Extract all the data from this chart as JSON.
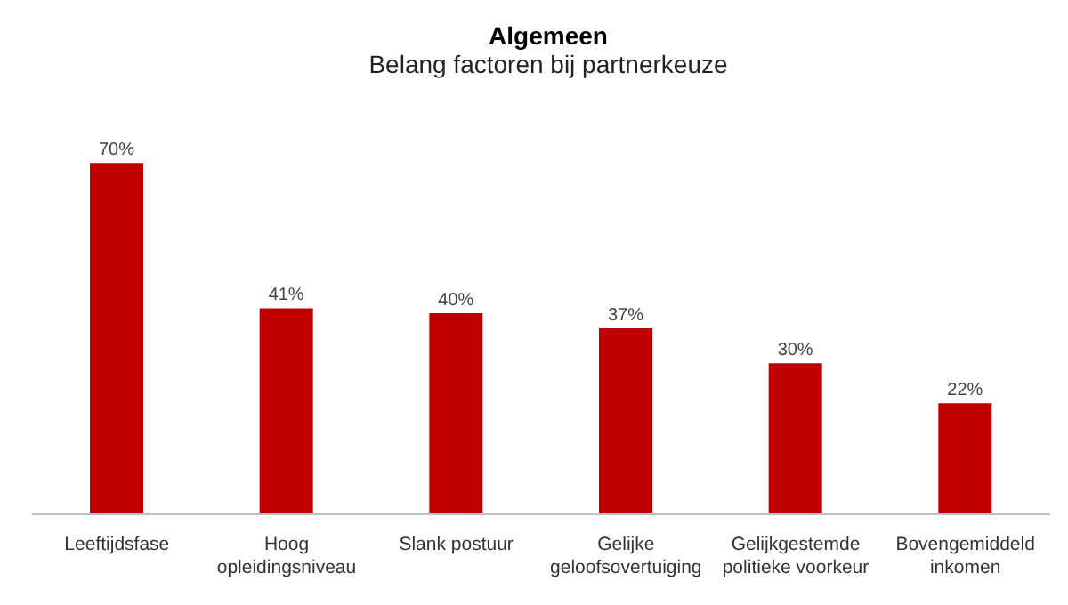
{
  "chart_data": {
    "type": "bar",
    "title": "Algemeen",
    "subtitle": "Belang factoren bij partnerkeuze",
    "categories": [
      "Leeftijdsfase",
      "Hoog\nopleidingsniveau",
      "Slank postuur",
      "Gelijke\ngeloofsovertuiging",
      "Gelijkgestemde\npolitieke voorkeur",
      "Bovengemiddeld\ninkomen"
    ],
    "values": [
      70,
      41,
      40,
      37,
      30,
      22
    ],
    "value_labels": [
      "70%",
      "41%",
      "40%",
      "37%",
      "30%",
      "22%"
    ],
    "color": "#c00000",
    "tick_labels": "x",
    "grid": false,
    "legend": false
  }
}
